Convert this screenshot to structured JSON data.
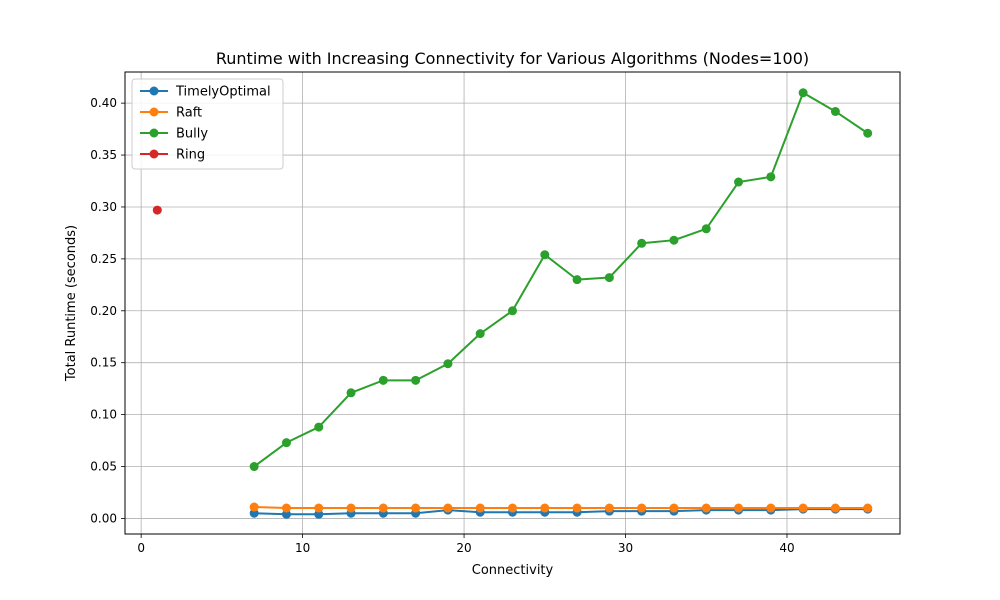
{
  "chart_data": {
    "type": "line",
    "title": "Runtime with Increasing Connectivity for Various Algorithms (Nodes=100)",
    "xlabel": "Connectivity",
    "ylabel": "Total Runtime (seconds)",
    "xlim": [
      -1,
      47
    ],
    "ylim": [
      -0.015,
      0.43
    ],
    "xticks": [
      0,
      10,
      20,
      30,
      40
    ],
    "xtick_labels": [
      "0",
      "10",
      "20",
      "30",
      "40"
    ],
    "yticks": [
      0.0,
      0.05,
      0.1,
      0.15,
      0.2,
      0.25,
      0.3,
      0.35,
      0.4
    ],
    "ytick_labels": [
      "0.00",
      "0.05",
      "0.10",
      "0.15",
      "0.20",
      "0.25",
      "0.30",
      "0.35",
      "0.40"
    ],
    "grid": true,
    "legend_position": "top-left",
    "series": [
      {
        "name": "TimelyOptimal",
        "color": "#1f77b4",
        "x": [
          7,
          9,
          11,
          13,
          15,
          17,
          19,
          21,
          23,
          25,
          27,
          29,
          31,
          33,
          35,
          37,
          39,
          41,
          43,
          45
        ],
        "y": [
          0.005,
          0.004,
          0.004,
          0.005,
          0.005,
          0.005,
          0.008,
          0.006,
          0.006,
          0.006,
          0.006,
          0.007,
          0.007,
          0.007,
          0.008,
          0.008,
          0.008,
          0.009,
          0.009,
          0.009
        ]
      },
      {
        "name": "Raft",
        "color": "#ff7f0e",
        "x": [
          7,
          9,
          11,
          13,
          15,
          17,
          19,
          21,
          23,
          25,
          27,
          29,
          31,
          33,
          35,
          37,
          39,
          41,
          43,
          45
        ],
        "y": [
          0.011,
          0.01,
          0.01,
          0.01,
          0.01,
          0.01,
          0.01,
          0.01,
          0.01,
          0.01,
          0.01,
          0.01,
          0.01,
          0.01,
          0.01,
          0.01,
          0.01,
          0.01,
          0.01,
          0.01
        ]
      },
      {
        "name": "Bully",
        "color": "#2ca02c",
        "x": [
          7,
          9,
          11,
          13,
          15,
          17,
          19,
          21,
          23,
          25,
          27,
          29,
          31,
          33,
          35,
          37,
          39,
          41,
          43,
          45
        ],
        "y": [
          0.05,
          0.073,
          0.088,
          0.121,
          0.133,
          0.133,
          0.149,
          0.178,
          0.2,
          0.254,
          0.23,
          0.232,
          0.265,
          0.268,
          0.279,
          0.324,
          0.329,
          0.41,
          0.392,
          0.371
        ]
      },
      {
        "name": "Ring",
        "color": "#d62728",
        "x": [
          1
        ],
        "y": [
          0.297
        ]
      }
    ]
  }
}
